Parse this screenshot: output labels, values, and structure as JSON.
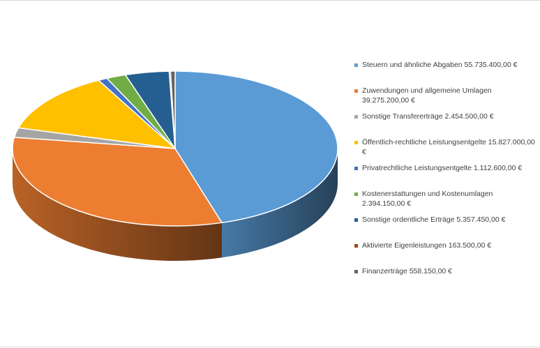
{
  "chart_data": {
    "type": "pie",
    "variant": "3d-exploded-none",
    "legend_position": "right",
    "slices": [
      {
        "label": "Steuern und ähnliche Abgaben",
        "value": 55735400.0,
        "value_text": "55.735.400,00 €",
        "legend_text": "Steuern und ähnliche Abgaben  55.735.400,00 €",
        "color": "#5B9BD5"
      },
      {
        "label": "Zuwendungen und allgemeine Umlagen",
        "value": 39275200.0,
        "value_text": "39.275.200,00 €",
        "legend_text": "Zuwendungen und allgemeine Umlagen 39.275.200,00 €",
        "color": "#ED7D31"
      },
      {
        "label": "Sonstige Transfererträge",
        "value": 2454500.0,
        "value_text": "2.454.500,00 €",
        "legend_text": "Sonstige Transfererträge  2.454.500,00 €",
        "color": "#A5A5A5"
      },
      {
        "label": "Öffentlich-rechtliche Leistungsentgelte",
        "value": 15827000.0,
        "value_text": "15.827.000,00 €",
        "legend_text": "Öffentlich-rechtliche Leistungsentgelte 15.827.000,00 €",
        "color": "#FFC000"
      },
      {
        "label": "Privatrechtliche Leistungsentgelte",
        "value": 1112600.0,
        "value_text": "1.112.600,00 €",
        "legend_text": "Privatrechtliche Leistungsentgelte 1.112.600,00 €",
        "color": "#4472C4"
      },
      {
        "label": "Kostenerstattungen und Kostenumlagen",
        "value": 2394150.0,
        "value_text": "2.394.150,00 €",
        "legend_text": "Kostenerstattungen und Kostenumlagen 2.394.150,00 €",
        "color": "#70AD47"
      },
      {
        "label": "Sonstige ordentliche Erträge",
        "value": 5357450.0,
        "value_text": "5.357.450,00 €",
        "legend_text": "Sonstige ordentliche Erträge 5.357.450,00 €",
        "color": "#255E91"
      },
      {
        "label": "Aktivierte Eigenleistungen",
        "value": 163500.0,
        "value_text": "163.500,00 €",
        "legend_text": "Aktivierte Eigenleistungen 163.500,00 €",
        "color": "#9E480E"
      },
      {
        "label": "Finanzerträge",
        "value": 558150.0,
        "value_text": "558.150,00 €",
        "legend_text": "Finanzerträge 558.150,00 €",
        "color": "#636363"
      }
    ]
  }
}
